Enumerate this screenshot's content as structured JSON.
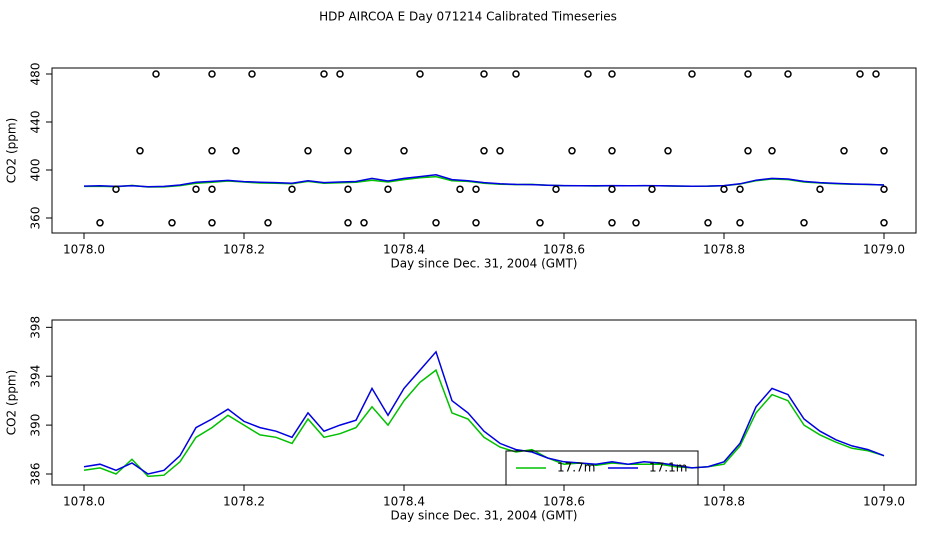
{
  "title": "HDP AIRCOA E  Day 071214  Calibrated Timeseries",
  "chart_data": [
    {
      "type": "line",
      "xlabel": "Day since Dec. 31, 2004 (GMT)",
      "ylabel": "CO2 (ppm)",
      "xlim": [
        1077.96,
        1079.04
      ],
      "ylim": [
        347.5,
        485
      ],
      "xticks": [
        {
          "value": 1078,
          "label": "1078.0"
        },
        1078.2,
        1078.4,
        1078.6,
        1078.8,
        {
          "value": 1079,
          "label": "1079.0"
        }
      ],
      "yticks": [
        360,
        400,
        440,
        480
      ],
      "x": [
        1078.0,
        1078.02,
        1078.04,
        1078.06,
        1078.08,
        1078.1,
        1078.12,
        1078.14,
        1078.16,
        1078.18,
        1078.2,
        1078.22,
        1078.24,
        1078.26,
        1078.28,
        1078.3,
        1078.32,
        1078.34,
        1078.36,
        1078.38,
        1078.4,
        1078.42,
        1078.44,
        1078.46,
        1078.48,
        1078.5,
        1078.52,
        1078.54,
        1078.56,
        1078.58,
        1078.6,
        1078.62,
        1078.64,
        1078.66,
        1078.68,
        1078.7,
        1078.72,
        1078.74,
        1078.76,
        1078.78,
        1078.8,
        1078.82,
        1078.84,
        1078.86,
        1078.88,
        1078.9,
        1078.92,
        1078.94,
        1078.96,
        1078.98,
        1079.0
      ],
      "series": [
        {
          "color": "#00c000",
          "values": [
            386.3,
            386.5,
            386.0,
            387.2,
            385.8,
            385.9,
            387.0,
            389.0,
            389.8,
            390.8,
            390.0,
            389.2,
            389.0,
            388.5,
            390.5,
            389.0,
            389.3,
            389.8,
            391.5,
            390.0,
            392.0,
            393.5,
            394.5,
            391.0,
            390.5,
            389.0,
            388.2,
            387.8,
            388.0,
            387.3,
            386.8,
            386.9,
            386.7,
            386.9,
            386.8,
            386.8,
            386.8,
            386.6,
            386.5,
            386.6,
            386.8,
            388.3,
            391.0,
            392.5,
            392.0,
            390.0,
            389.2,
            388.6,
            388.1,
            387.9,
            387.5
          ]
        },
        {
          "color": "#0000e0",
          "values": [
            386.6,
            386.8,
            386.3,
            386.9,
            386.0,
            386.3,
            387.5,
            389.8,
            390.5,
            391.3,
            390.3,
            389.8,
            389.5,
            389.0,
            391.0,
            389.5,
            390.0,
            390.4,
            393.0,
            390.8,
            393.0,
            394.5,
            396.0,
            392.0,
            391.0,
            389.5,
            388.5,
            388.0,
            387.8,
            387.3,
            387.0,
            386.9,
            386.8,
            387.0,
            386.8,
            387.0,
            386.9,
            386.7,
            386.5,
            386.6,
            387.0,
            388.5,
            391.5,
            393.0,
            392.5,
            390.5,
            389.5,
            388.8,
            388.3,
            388.0,
            387.5
          ]
        }
      ],
      "points": {
        "color": "#000000",
        "x": [
          1078.09,
          1078.16,
          1078.21,
          1078.3,
          1078.32,
          1078.42,
          1078.5,
          1078.54,
          1078.63,
          1078.66,
          1078.76,
          1078.83,
          1078.88,
          1078.97,
          1078.99,
          1078.07,
          1078.16,
          1078.19,
          1078.28,
          1078.33,
          1078.4,
          1078.5,
          1078.52,
          1078.61,
          1078.66,
          1078.73,
          1078.83,
          1078.86,
          1078.95,
          1079.0,
          1078.04,
          1078.14,
          1078.16,
          1078.26,
          1078.33,
          1078.38,
          1078.47,
          1078.49,
          1078.59,
          1078.66,
          1078.71,
          1078.8,
          1078.82,
          1078.92,
          1079.0,
          1078.02,
          1078.11,
          1078.16,
          1078.23,
          1078.33,
          1078.35,
          1078.44,
          1078.49,
          1078.57,
          1078.66,
          1078.69,
          1078.78,
          1078.82,
          1078.9,
          1079.0
        ],
        "values": [
          480,
          480,
          480,
          480,
          480,
          480,
          480,
          480,
          480,
          480,
          480,
          480,
          480,
          480,
          480,
          416,
          416,
          416,
          416,
          416,
          416,
          416,
          416,
          416,
          416,
          416,
          416,
          416,
          416,
          416,
          384,
          384,
          384,
          384,
          384,
          384,
          384,
          384,
          384,
          384,
          384,
          384,
          384,
          384,
          384,
          356,
          356,
          356,
          356,
          356,
          356,
          356,
          356,
          356,
          356,
          356,
          356,
          356,
          356,
          356
        ]
      }
    },
    {
      "type": "line",
      "xlabel": "Day since Dec. 31, 2004 (GMT)",
      "ylabel": "CO2 (ppm)",
      "xlim": [
        1077.96,
        1079.04
      ],
      "ylim": [
        385.1,
        398.6
      ],
      "xticks": [
        {
          "value": 1078,
          "label": "1078.0"
        },
        1078.2,
        1078.4,
        1078.6,
        1078.8,
        {
          "value": 1079,
          "label": "1079.0"
        }
      ],
      "yticks": [
        386,
        390,
        394,
        398
      ],
      "legend": "bottom",
      "x": [
        1078.0,
        1078.02,
        1078.04,
        1078.06,
        1078.08,
        1078.1,
        1078.12,
        1078.14,
        1078.16,
        1078.18,
        1078.2,
        1078.22,
        1078.24,
        1078.26,
        1078.28,
        1078.3,
        1078.32,
        1078.34,
        1078.36,
        1078.38,
        1078.4,
        1078.42,
        1078.44,
        1078.46,
        1078.48,
        1078.5,
        1078.52,
        1078.54,
        1078.56,
        1078.58,
        1078.6,
        1078.62,
        1078.64,
        1078.66,
        1078.68,
        1078.7,
        1078.72,
        1078.74,
        1078.76,
        1078.78,
        1078.8,
        1078.82,
        1078.84,
        1078.86,
        1078.88,
        1078.9,
        1078.92,
        1078.94,
        1078.96,
        1078.98,
        1079.0
      ],
      "series": [
        {
          "name": "17.7m",
          "color": "#00c000",
          "values": [
            386.3,
            386.5,
            386.0,
            387.2,
            385.8,
            385.9,
            387.0,
            389.0,
            389.8,
            390.8,
            390.0,
            389.2,
            389.0,
            388.5,
            390.5,
            389.0,
            389.3,
            389.8,
            391.5,
            390.0,
            392.0,
            393.5,
            394.5,
            391.0,
            390.5,
            389.0,
            388.2,
            387.8,
            388.0,
            387.3,
            386.8,
            386.9,
            386.7,
            386.9,
            386.8,
            386.8,
            386.8,
            386.6,
            386.5,
            386.6,
            386.8,
            388.3,
            391.0,
            392.5,
            392.0,
            390.0,
            389.2,
            388.6,
            388.1,
            387.9,
            387.5
          ]
        },
        {
          "name": "17.1m",
          "color": "#0000e0",
          "values": [
            386.6,
            386.8,
            386.3,
            386.9,
            386.0,
            386.3,
            387.5,
            389.8,
            390.5,
            391.3,
            390.3,
            389.8,
            389.5,
            389.0,
            391.0,
            389.5,
            390.0,
            390.4,
            393.0,
            390.8,
            393.0,
            394.5,
            396.0,
            392.0,
            391.0,
            389.5,
            388.5,
            388.0,
            387.8,
            387.3,
            387.0,
            386.9,
            386.8,
            387.0,
            386.8,
            387.0,
            386.9,
            386.7,
            386.5,
            386.6,
            387.0,
            388.5,
            391.5,
            393.0,
            392.5,
            390.5,
            389.5,
            388.8,
            388.3,
            388.0,
            387.5
          ]
        }
      ]
    }
  ]
}
